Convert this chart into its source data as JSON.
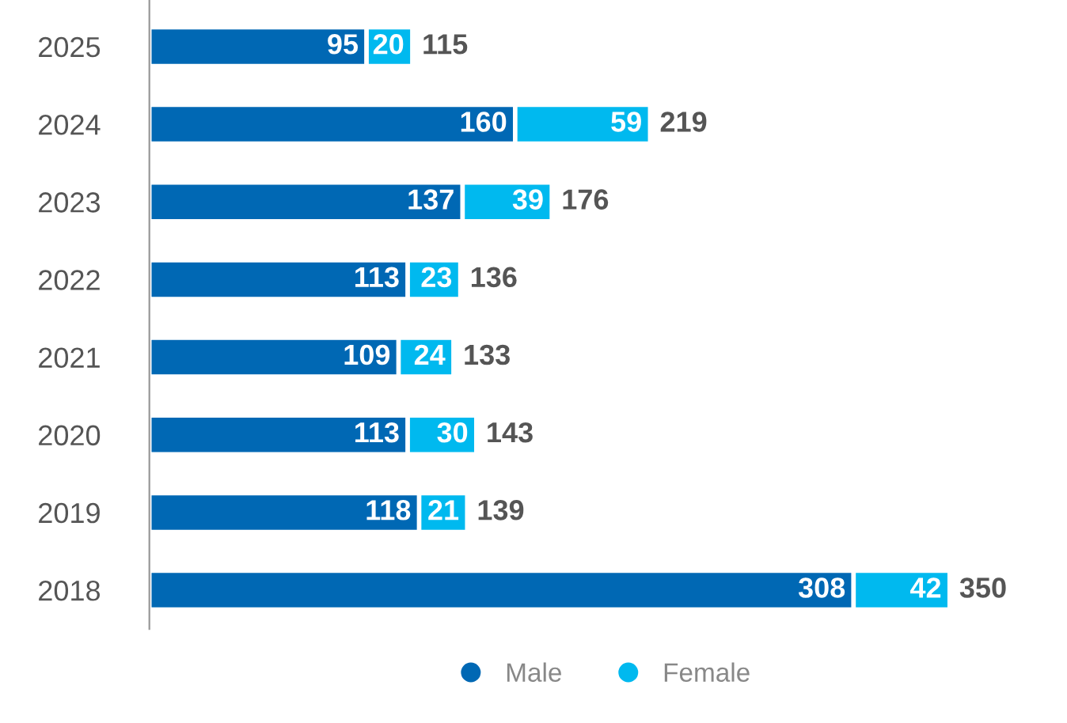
{
  "chart_data": {
    "type": "bar",
    "orientation": "horizontal",
    "stacked": true,
    "categories": [
      "2025",
      "2024",
      "2023",
      "2022",
      "2021",
      "2020",
      "2019",
      "2018"
    ],
    "series": [
      {
        "name": "Male",
        "color": "#0068b4",
        "values": [
          95,
          160,
          137,
          113,
          109,
          113,
          118,
          308
        ]
      },
      {
        "name": "Female",
        "color": "#00b9ef",
        "values": [
          20,
          59,
          39,
          23,
          24,
          30,
          21,
          42
        ]
      }
    ],
    "data_labels": true,
    "totals": [
      "115",
      "219",
      "176",
      "136",
      "133",
      "143",
      "139",
      "350"
    ],
    "legend": "bottom",
    "grid": false,
    "tick_labels": "y"
  }
}
